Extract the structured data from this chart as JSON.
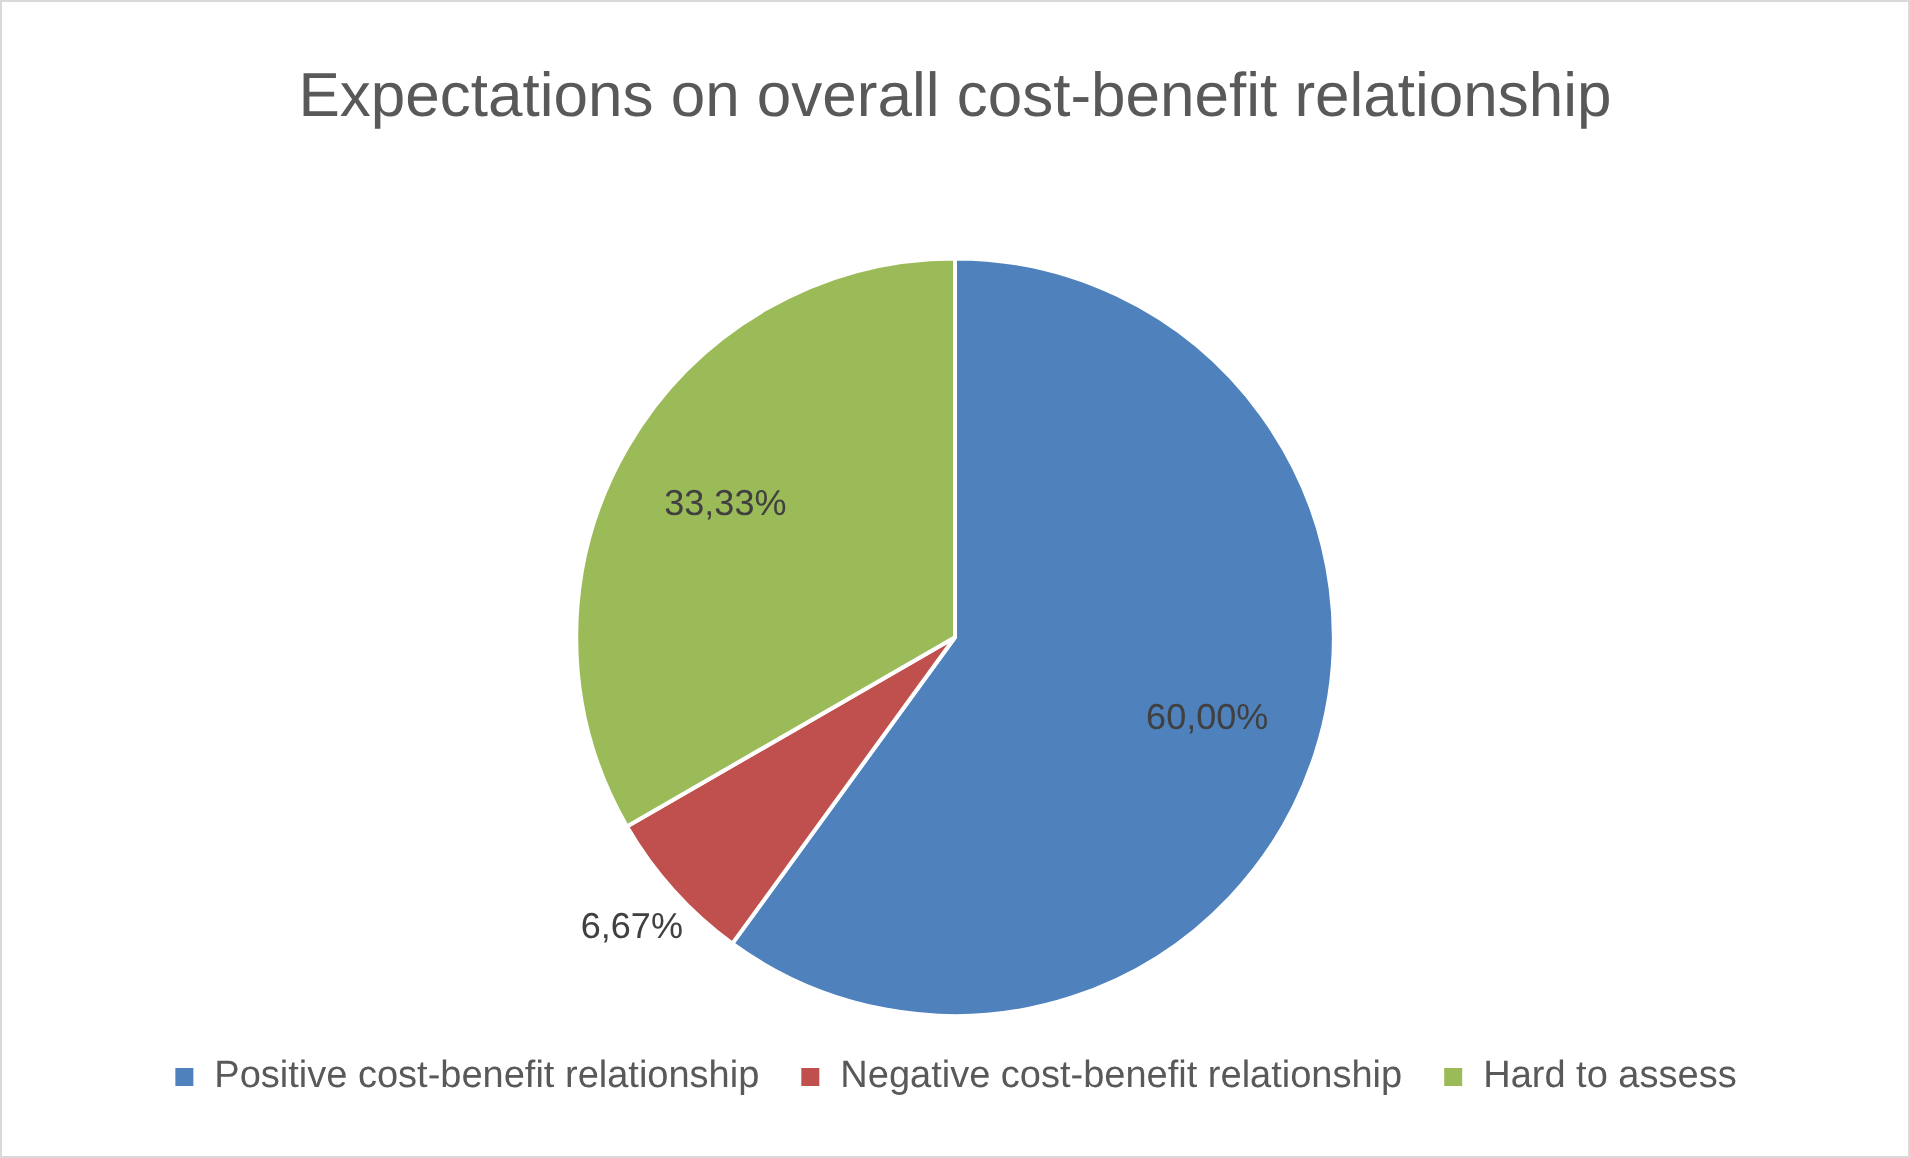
{
  "chart_data": {
    "type": "pie",
    "title": "Expectations on overall cost-benefit relationship",
    "categories": [
      "Positive cost-benefit relationship",
      "Negative cost-benefit relationship",
      "Hard to assess"
    ],
    "values": [
      60,
      6.67,
      33.33
    ],
    "colors": [
      "#4f81bd",
      "#c0504d",
      "#9bbb59"
    ],
    "value_labels": [
      "60,00%",
      "6,67%",
      "33,33%"
    ],
    "legend": "bottom"
  }
}
